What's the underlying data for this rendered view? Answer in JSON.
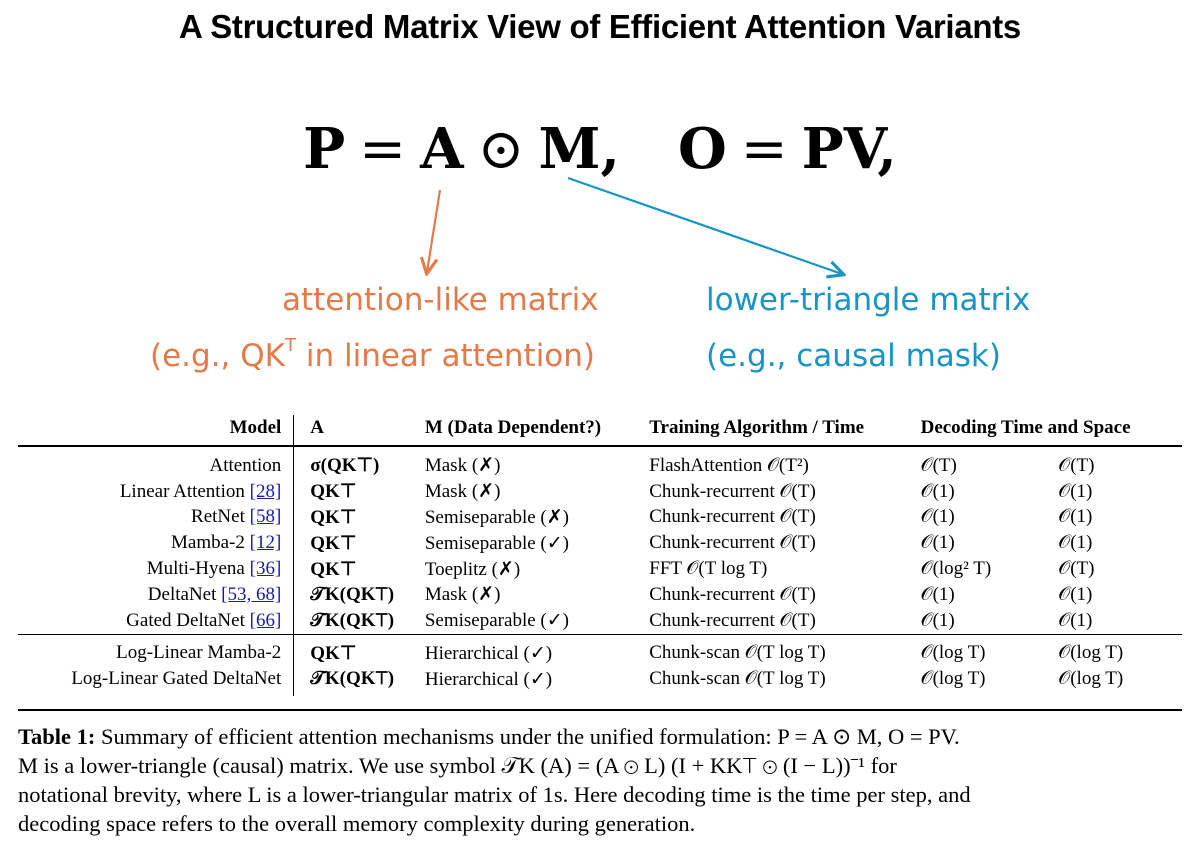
{
  "title": "A Structured Matrix View of Efficient Attention Variants",
  "equation": {
    "p": "P",
    "eq": "=",
    "a": "A",
    "odot": "⊙",
    "m": "M,",
    "o": "O",
    "eq2": "=",
    "pv": "PV,"
  },
  "annotations": {
    "left_line1": "attention-like matrix",
    "left_line2_pre": "(e.g., QK",
    "left_line2_sup": "T",
    "left_line2_post": " in linear attention)",
    "right_line1": "lower-triangle matrix",
    "right_line2": "(e.g., causal mask)",
    "colors": {
      "orange": "#e27a4a",
      "blue": "#1994c4"
    }
  },
  "table": {
    "headers": [
      "Model",
      "A",
      "M (Data Dependent?)",
      "Training Algorithm / Time",
      "Decoding Time and Space"
    ],
    "rows": [
      [
        "Attention",
        "",
        "σ(QK⊤)",
        "Mask (✗)",
        "FlashAttention 𝒪(T²)",
        "𝒪(T)",
        "𝒪(T)"
      ],
      [
        "Linear Attention",
        "[28]",
        "QK⊤",
        "Mask (✗)",
        "Chunk-recurrent 𝒪(T)",
        "𝒪(1)",
        "𝒪(1)"
      ],
      [
        "RetNet",
        "[58]",
        "QK⊤",
        "Semiseparable (✗)",
        "Chunk-recurrent 𝒪(T)",
        "𝒪(1)",
        "𝒪(1)"
      ],
      [
        "Mamba-2",
        "[12]",
        "QK⊤",
        "Semiseparable (✓)",
        "Chunk-recurrent 𝒪(T)",
        "𝒪(1)",
        "𝒪(1)"
      ],
      [
        "Multi-Hyena",
        "[36]",
        "QK⊤",
        "Toeplitz (✗)",
        "FFT 𝒪(T log T)",
        "𝒪(log² T)",
        "𝒪(T)"
      ],
      [
        "DeltaNet",
        "[53, 68]",
        "𝒯K(QK⊤)",
        "Mask (✗)",
        "Chunk-recurrent 𝒪(T)",
        "𝒪(1)",
        "𝒪(1)"
      ],
      [
        "Gated DeltaNet",
        "[66]",
        "𝒯K(QK⊤)",
        "Semiseparable (✓)",
        "Chunk-recurrent 𝒪(T)",
        "𝒪(1)",
        "𝒪(1)"
      ],
      [
        "Log-Linear Mamba-2",
        "",
        "QK⊤",
        "Hierarchical (✓)",
        "Chunk-scan 𝒪(T log T)",
        "𝒪(log T)",
        "𝒪(log T)"
      ],
      [
        "Log-Linear Gated DeltaNet",
        "",
        "𝒯K(QK⊤)",
        "Hierarchical (✓)",
        "Chunk-scan 𝒪(T log T)",
        "𝒪(log T)",
        "𝒪(log T)"
      ]
    ]
  },
  "caption": {
    "label": "Table 1:",
    "line1": " Summary of efficient attention mechanisms under the unified formulation: P = A ⊙ M, O = PV.",
    "line2": "M is a lower-triangle (causal) matrix.  We use symbol 𝒯K (A) = (A ⊙ L) (I + KK⊤ ⊙ (I − L))⁻¹ for",
    "line3": "notational brevity, where L is a lower-triangular matrix of 1s. Here decoding time is the time per step, and",
    "line4": "decoding space refers to the overall memory complexity during generation."
  }
}
